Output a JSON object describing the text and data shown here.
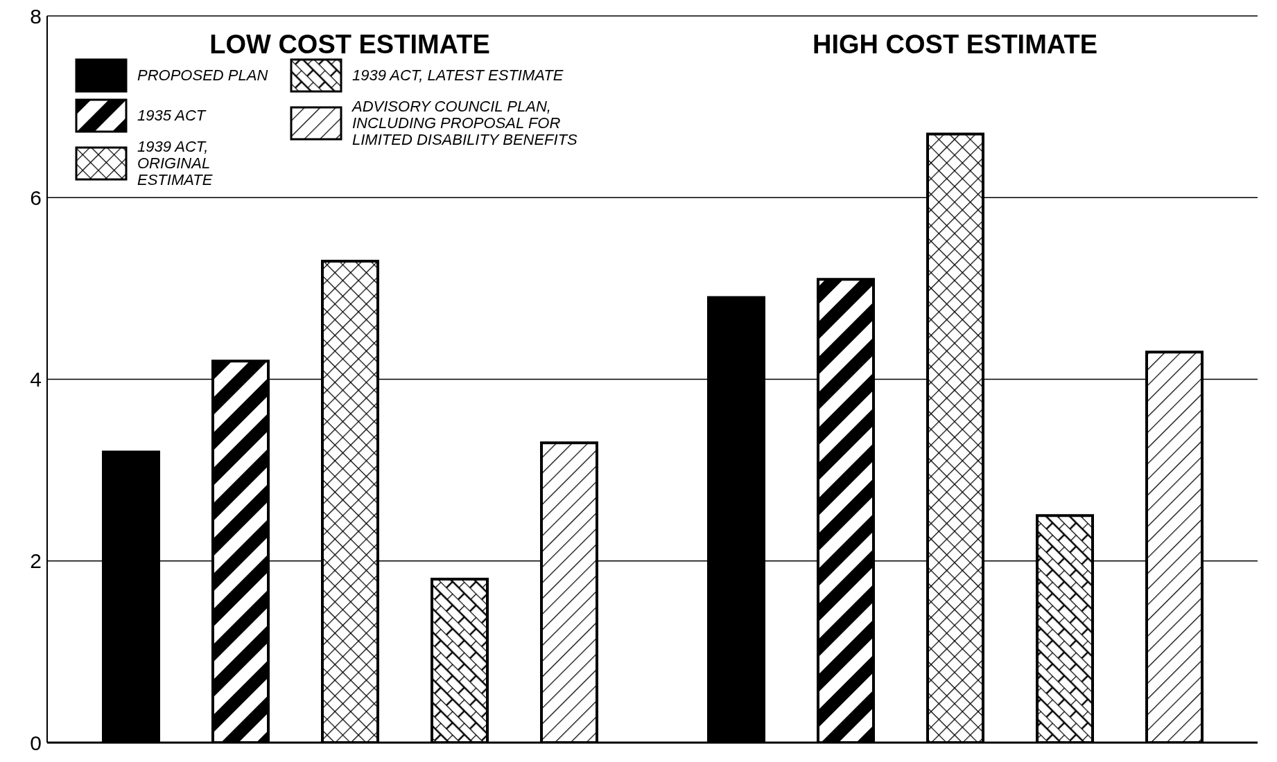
{
  "chart_data": {
    "type": "bar",
    "categories": [
      "LOW COST ESTIMATE",
      "HIGH COST ESTIMATE"
    ],
    "series": [
      {
        "name": "PROPOSED PLAN",
        "color": "#000000",
        "values": [
          3.2,
          4.9
        ]
      },
      {
        "name": "1935 ACT",
        "color": "#000000",
        "values": [
          4.2,
          5.1
        ]
      },
      {
        "name": "1939 ACT, ORIGINAL ESTIMATE",
        "color": "#000000",
        "values": [
          5.3,
          6.7
        ]
      },
      {
        "name": "1939 ACT, LATEST ESTIMATE",
        "color": "#000000",
        "values": [
          1.8,
          2.5
        ]
      },
      {
        "name": "ADVISORY COUNCIL PLAN, INCLUDING PROPOSAL FOR LIMITED DISABILITY BENEFITS",
        "color": "#000000",
        "values": [
          3.3,
          4.3
        ]
      }
    ],
    "ylim": [
      0,
      8
    ],
    "yticks": [
      0,
      2,
      4,
      6,
      8
    ],
    "grid": "y",
    "legend": "top left"
  }
}
